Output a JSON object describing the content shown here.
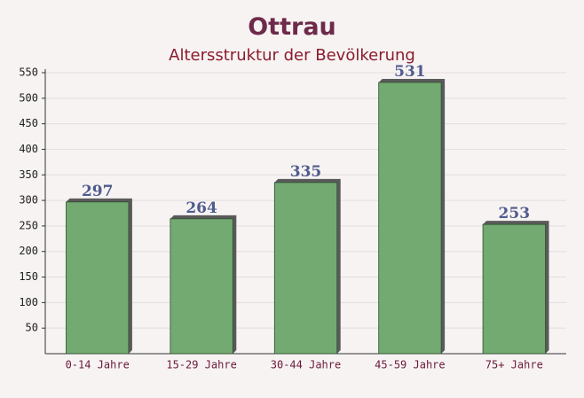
{
  "chart_data": {
    "type": "bar",
    "title": "Ottrau",
    "subtitle": "Altersstruktur der Bevölkerung",
    "categories": [
      "0-14 Jahre",
      "15-29 Jahre",
      "30-44 Jahre",
      "45-59 Jahre",
      "75+ Jahre"
    ],
    "values": [
      297,
      264,
      335,
      531,
      253
    ],
    "color": "#6aa56a",
    "ylim": [
      0,
      550
    ],
    "yticks": [
      50,
      100,
      150,
      200,
      250,
      300,
      350,
      400,
      450,
      500,
      550
    ],
    "grid": true
  }
}
